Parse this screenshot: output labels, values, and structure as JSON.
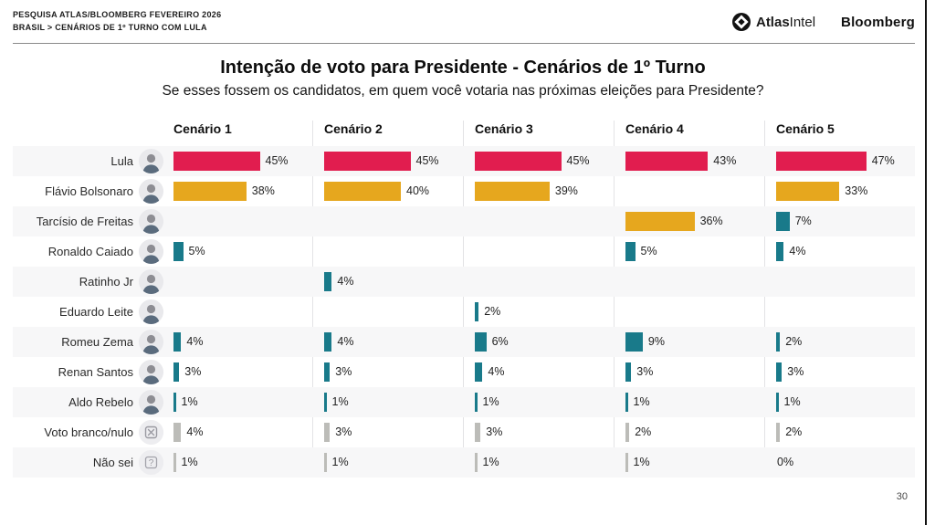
{
  "header": {
    "kicker_line1": "PESQUISA ATLAS/BLOOMBERG FEVEREIRO 2026",
    "kicker_line2": "BRASIL > CENÁRIOS DE 1º TURNO COM LULA",
    "brand_atlas_bold": "Atlas",
    "brand_atlas_light": "Intel",
    "brand_bloomberg": "Bloomberg"
  },
  "title": "Intenção de voto para Presidente - Cenários de 1º Turno",
  "subtitle": "Se esses fossem os candidatos, em quem você votaria nas próximas eleições para Presidente?",
  "page_number": "30",
  "colors": {
    "red": "#E11D4F",
    "yellow": "#E6A71E",
    "teal": "#197A8A",
    "gray": "#BCBCB8"
  },
  "chart_data": {
    "type": "bar",
    "orientation": "horizontal",
    "unit": "%",
    "value_range": [
      0,
      50
    ],
    "categories": [
      "Cenário 1",
      "Cenário 2",
      "Cenário 3",
      "Cenário 4",
      "Cenário 5"
    ],
    "rows": [
      {
        "label": "Lula",
        "icon": "avatar",
        "cells": [
          {
            "value": 45,
            "color": "red"
          },
          {
            "value": 45,
            "color": "red"
          },
          {
            "value": 45,
            "color": "red"
          },
          {
            "value": 43,
            "color": "red"
          },
          {
            "value": 47,
            "color": "red"
          }
        ]
      },
      {
        "label": "Flávio Bolsonaro",
        "icon": "avatar",
        "cells": [
          {
            "value": 38,
            "color": "yellow"
          },
          {
            "value": 40,
            "color": "yellow"
          },
          {
            "value": 39,
            "color": "yellow"
          },
          null,
          {
            "value": 33,
            "color": "yellow"
          }
        ]
      },
      {
        "label": "Tarcísio de Freitas",
        "icon": "avatar",
        "cells": [
          null,
          null,
          null,
          {
            "value": 36,
            "color": "yellow"
          },
          {
            "value": 7,
            "color": "teal"
          }
        ]
      },
      {
        "label": "Ronaldo Caiado",
        "icon": "avatar",
        "cells": [
          {
            "value": 5,
            "color": "teal"
          },
          null,
          null,
          {
            "value": 5,
            "color": "teal"
          },
          {
            "value": 4,
            "color": "teal"
          }
        ]
      },
      {
        "label": "Ratinho Jr",
        "icon": "avatar",
        "cells": [
          null,
          {
            "value": 4,
            "color": "teal"
          },
          null,
          null,
          null
        ]
      },
      {
        "label": "Eduardo Leite",
        "icon": "avatar",
        "cells": [
          null,
          null,
          {
            "value": 2,
            "color": "teal"
          },
          null,
          null
        ]
      },
      {
        "label": "Romeu Zema",
        "icon": "avatar",
        "cells": [
          {
            "value": 4,
            "color": "teal"
          },
          {
            "value": 4,
            "color": "teal"
          },
          {
            "value": 6,
            "color": "teal"
          },
          {
            "value": 9,
            "color": "teal"
          },
          {
            "value": 2,
            "color": "teal"
          }
        ]
      },
      {
        "label": "Renan Santos",
        "icon": "avatar",
        "cells": [
          {
            "value": 3,
            "color": "teal"
          },
          {
            "value": 3,
            "color": "teal"
          },
          {
            "value": 4,
            "color": "teal"
          },
          {
            "value": 3,
            "color": "teal"
          },
          {
            "value": 3,
            "color": "teal"
          }
        ]
      },
      {
        "label": "Aldo Rebelo",
        "icon": "avatar",
        "cells": [
          {
            "value": 1,
            "color": "teal"
          },
          {
            "value": 1,
            "color": "teal"
          },
          {
            "value": 1,
            "color": "teal"
          },
          {
            "value": 1,
            "color": "teal"
          },
          {
            "value": 1,
            "color": "teal"
          }
        ]
      },
      {
        "label": "Voto branco/nulo",
        "icon": "blank-vote",
        "cells": [
          {
            "value": 4,
            "color": "gray"
          },
          {
            "value": 3,
            "color": "gray"
          },
          {
            "value": 3,
            "color": "gray"
          },
          {
            "value": 2,
            "color": "gray"
          },
          {
            "value": 2,
            "color": "gray"
          }
        ]
      },
      {
        "label": "Não sei",
        "icon": "dont-know",
        "cells": [
          {
            "value": 1,
            "color": "gray"
          },
          {
            "value": 1,
            "color": "gray"
          },
          {
            "value": 1,
            "color": "gray"
          },
          {
            "value": 1,
            "color": "gray"
          },
          {
            "value": 0,
            "color": "gray"
          }
        ]
      }
    ]
  }
}
